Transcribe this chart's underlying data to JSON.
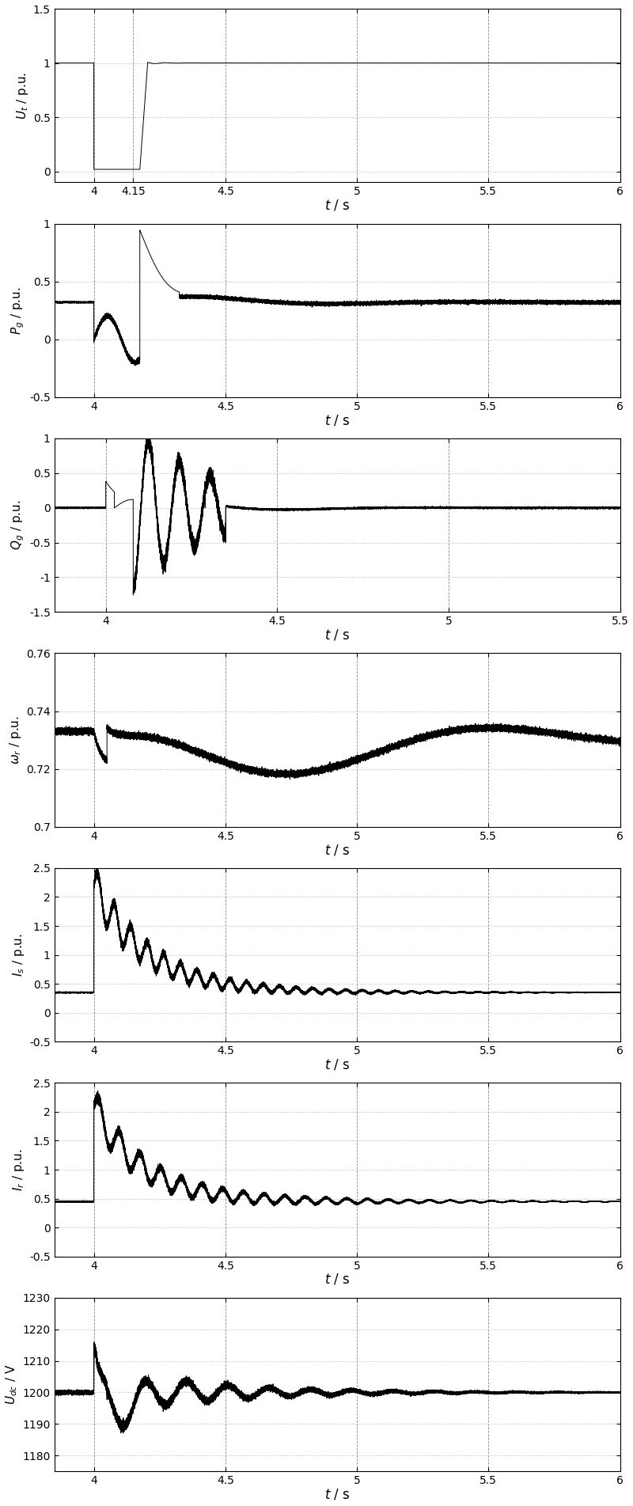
{
  "subplots": [
    {
      "ylabel": "$U_t$ / p.u.",
      "ylim": [
        -0.1,
        1.5
      ],
      "yticks": [
        0,
        0.5,
        1.0,
        1.5
      ],
      "xlim": [
        3.85,
        6.0
      ],
      "xticks": [
        4.0,
        4.15,
        4.5,
        5.0,
        5.5,
        6.0
      ],
      "xticklabels": [
        "4",
        "4.15",
        "4.5",
        "5",
        "5.5",
        "6"
      ],
      "xlabel": "$t$ / s"
    },
    {
      "ylabel": "$P_g$ / p.u.",
      "ylim": [
        -0.5,
        1.0
      ],
      "yticks": [
        -0.5,
        0,
        0.5,
        1.0
      ],
      "xlim": [
        3.85,
        6.0
      ],
      "xticks": [
        4.0,
        4.5,
        5.0,
        5.5,
        6.0
      ],
      "xticklabels": [
        "4",
        "4.5",
        "5",
        "5.5",
        "6"
      ],
      "xlabel": "$t$ / s"
    },
    {
      "ylabel": "$Q_g$ / p.u.",
      "ylim": [
        -1.5,
        1.0
      ],
      "yticks": [
        -1.5,
        -1.0,
        -0.5,
        0,
        0.5,
        1.0
      ],
      "xlim": [
        3.85,
        5.5
      ],
      "xticks": [
        4.0,
        4.5,
        5.0,
        5.5
      ],
      "xticklabels": [
        "4",
        "4.5",
        "5",
        "5.5"
      ],
      "xlabel": "$t$ / s"
    },
    {
      "ylabel": "$\\omega_r$ / p.u.",
      "ylim": [
        0.7,
        0.76
      ],
      "yticks": [
        0.7,
        0.72,
        0.74,
        0.76
      ],
      "xlim": [
        3.85,
        6.0
      ],
      "xticks": [
        4.0,
        4.5,
        5.0,
        5.5,
        6.0
      ],
      "xticklabels": [
        "4",
        "4.5",
        "5",
        "5.5",
        "6"
      ],
      "xlabel": "$t$ / s"
    },
    {
      "ylabel": "$I_s$ / p.u.",
      "ylim": [
        -0.5,
        2.5
      ],
      "yticks": [
        -0.5,
        0,
        0.5,
        1.0,
        1.5,
        2.0,
        2.5
      ],
      "xlim": [
        3.85,
        6.0
      ],
      "xticks": [
        4.0,
        4.5,
        5.0,
        5.5,
        6.0
      ],
      "xticklabels": [
        "4",
        "4.5",
        "5",
        "5.5",
        "6"
      ],
      "xlabel": "$t$ / s"
    },
    {
      "ylabel": "$I_r$ / p.u.",
      "ylim": [
        -0.5,
        2.5
      ],
      "yticks": [
        -0.5,
        0,
        0.5,
        1.0,
        1.5,
        2.0,
        2.5
      ],
      "xlim": [
        3.85,
        6.0
      ],
      "xticks": [
        4.0,
        4.5,
        5.0,
        5.5,
        6.0
      ],
      "xticklabels": [
        "4",
        "4.5",
        "5",
        "5.5",
        "6"
      ],
      "xlabel": "$t$ / s"
    },
    {
      "ylabel": "$U_{dc}$ / V",
      "ylim": [
        1175,
        1230
      ],
      "yticks": [
        1180,
        1190,
        1200,
        1210,
        1220,
        1230
      ],
      "xlim": [
        3.85,
        6.0
      ],
      "xticks": [
        4.0,
        4.5,
        5.0,
        5.5,
        6.0
      ],
      "xticklabels": [
        "4",
        "4.5",
        "5",
        "5.5",
        "6"
      ],
      "xlabel": "$t$ / s"
    }
  ],
  "line_color": "#000000",
  "bg_color": "#ffffff",
  "figsize": [
    8.0,
    19.03
  ],
  "dpi": 100
}
